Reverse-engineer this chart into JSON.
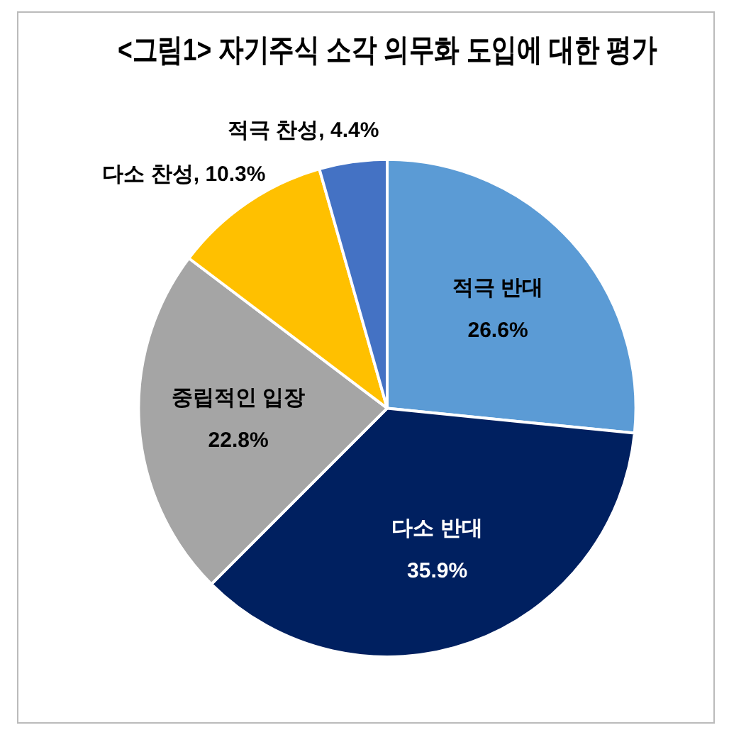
{
  "chart_data": {
    "type": "pie",
    "title": "<그림1> 자기주식 소각 의무화 도입에 대한 평가",
    "categories": [
      "적극 반대",
      "다소 반대",
      "중립적인 입장",
      "다소 찬성",
      "적극 찬성"
    ],
    "values": [
      26.6,
      35.9,
      22.8,
      10.3,
      4.4
    ],
    "colors": [
      "#5b9bd5",
      "#002060",
      "#a5a5a5",
      "#ffc000",
      "#4472c4"
    ],
    "data_labels": true,
    "value_labels": [
      "26.6%",
      "35.9%",
      "22.8%",
      ", 10.3%",
      ", 4.4%"
    ],
    "legend": false
  }
}
